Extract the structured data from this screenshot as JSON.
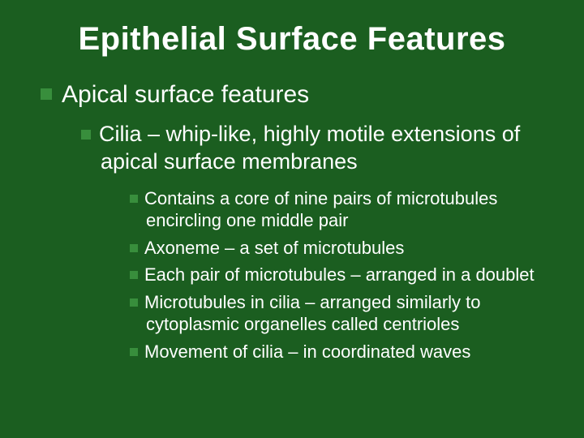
{
  "background_color": "#1b5e20",
  "bullet_color": "#388e3c",
  "text_color": "#ffffff",
  "title_fontsize": 40,
  "level1_fontsize": 30,
  "level2_fontsize": 27,
  "level3_fontsize": 22,
  "title": "Epithelial Surface Features",
  "level1": "Apical surface features",
  "level2": "Cilia – whip-like, highly motile extensions of apical surface membranes",
  "level3_items": [
    "Contains a core of nine pairs of microtubules encircling one middle pair",
    "Axoneme – a set of microtubules",
    "Each pair of microtubules – arranged in a doublet",
    "Microtubules in cilia – arranged similarly to cytoplasmic organelles called centrioles",
    "Movement of cilia – in coordinated waves"
  ]
}
